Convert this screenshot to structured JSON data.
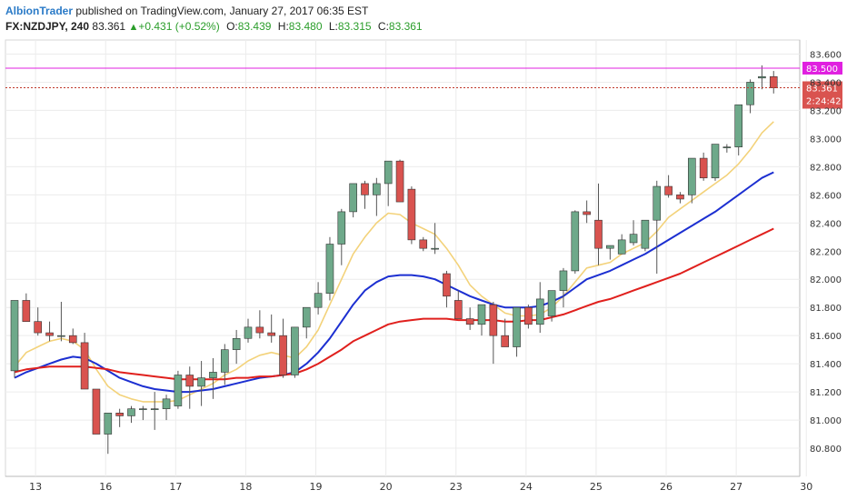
{
  "header": {
    "author": "AlbionTrader",
    "published_text": "published on TradingView.com, January 27, 2017 06:35 EST",
    "symbol": "FX:NZDJPY, 240",
    "last": "83.361",
    "change": "+0.431 (+0.52%)",
    "open_label": "O:",
    "open": "83.439",
    "high_label": "H:",
    "high": "83.480",
    "low_label": "L:",
    "low": "83.315",
    "close_label": "C:",
    "close": "83.361"
  },
  "chart_data": {
    "type": "candlestick",
    "ylim": [
      80.6,
      83.7
    ],
    "yticks": [
      "83.600",
      "83.400",
      "83.200",
      "83.000",
      "82.800",
      "82.600",
      "82.400",
      "82.200",
      "82.000",
      "81.800",
      "81.600",
      "81.400",
      "81.200",
      "81.000",
      "80.800"
    ],
    "xticks": [
      {
        "label": "13",
        "i": 1.8
      },
      {
        "label": "16",
        "i": 7.8
      },
      {
        "label": "17",
        "i": 13.8
      },
      {
        "label": "18",
        "i": 19.8
      },
      {
        "label": "19",
        "i": 25.8
      },
      {
        "label": "20",
        "i": 31.8
      },
      {
        "label": "23",
        "i": 37.8
      },
      {
        "label": "24",
        "i": 43.8
      },
      {
        "label": "25",
        "i": 49.8
      },
      {
        "label": "26",
        "i": 55.8
      },
      {
        "label": "27",
        "i": 61.8
      },
      {
        "label": "30",
        "i": 67.8
      }
    ],
    "candles": [
      [
        81.35,
        81.85,
        81.3,
        81.85
      ],
      [
        81.85,
        81.9,
        81.7,
        81.7
      ],
      [
        81.7,
        81.8,
        81.6,
        81.62
      ],
      [
        81.62,
        81.7,
        81.56,
        81.6
      ],
      [
        81.6,
        81.84,
        81.56,
        81.6
      ],
      [
        81.6,
        81.65,
        81.54,
        81.55
      ],
      [
        81.55,
        81.62,
        81.22,
        81.22
      ],
      [
        81.22,
        81.22,
        80.9,
        80.9
      ],
      [
        80.9,
        81.05,
        80.76,
        81.05
      ],
      [
        81.05,
        81.08,
        80.95,
        81.03
      ],
      [
        81.03,
        81.1,
        80.98,
        81.08
      ],
      [
        81.08,
        81.1,
        81.0,
        81.08
      ],
      [
        81.08,
        81.2,
        80.93,
        81.08
      ],
      [
        81.08,
        81.18,
        81.0,
        81.15
      ],
      [
        81.1,
        81.35,
        81.08,
        81.32
      ],
      [
        81.32,
        81.38,
        81.08,
        81.24
      ],
      [
        81.24,
        81.42,
        81.1,
        81.3
      ],
      [
        81.3,
        81.44,
        81.15,
        81.34
      ],
      [
        81.34,
        81.54,
        81.25,
        81.5
      ],
      [
        81.5,
        81.64,
        81.4,
        81.58
      ],
      [
        81.58,
        81.72,
        81.55,
        81.66
      ],
      [
        81.66,
        81.78,
        81.58,
        81.62
      ],
      [
        81.62,
        81.75,
        81.55,
        81.6
      ],
      [
        81.6,
        81.72,
        81.3,
        81.32
      ],
      [
        81.32,
        81.66,
        81.3,
        81.66
      ],
      [
        81.66,
        81.8,
        81.58,
        81.8
      ],
      [
        81.8,
        81.98,
        81.75,
        81.9
      ],
      [
        81.9,
        82.3,
        81.85,
        82.25
      ],
      [
        82.25,
        82.5,
        82.1,
        82.48
      ],
      [
        82.48,
        82.68,
        82.44,
        82.68
      ],
      [
        82.68,
        82.7,
        82.5,
        82.6
      ],
      [
        82.6,
        82.72,
        82.45,
        82.68
      ],
      [
        82.68,
        82.84,
        82.52,
        82.84
      ],
      [
        82.84,
        82.85,
        82.55,
        82.55
      ],
      [
        82.64,
        82.66,
        82.25,
        82.28
      ],
      [
        82.28,
        82.3,
        82.2,
        82.22
      ],
      [
        82.22,
        82.4,
        82.18,
        82.22
      ],
      [
        82.04,
        82.06,
        81.8,
        81.88
      ],
      [
        81.85,
        81.92,
        81.74,
        81.72
      ],
      [
        81.72,
        81.8,
        81.64,
        81.68
      ],
      [
        81.68,
        81.8,
        81.6,
        81.82
      ],
      [
        81.82,
        81.84,
        81.4,
        81.6
      ],
      [
        81.6,
        81.72,
        81.52,
        81.52
      ],
      [
        81.52,
        81.78,
        81.45,
        81.8
      ],
      [
        81.8,
        81.82,
        81.65,
        81.68
      ],
      [
        81.68,
        81.98,
        81.62,
        81.86
      ],
      [
        81.74,
        81.92,
        81.7,
        81.92
      ],
      [
        81.92,
        82.08,
        81.8,
        82.06
      ],
      [
        82.06,
        82.49,
        82.04,
        82.48
      ],
      [
        82.48,
        82.56,
        82.4,
        82.46
      ],
      [
        82.42,
        82.68,
        82.1,
        82.22
      ],
      [
        82.22,
        82.24,
        82.14,
        82.24
      ],
      [
        82.18,
        82.32,
        82.18,
        82.28
      ],
      [
        82.26,
        82.42,
        82.24,
        82.32
      ],
      [
        82.22,
        82.4,
        82.2,
        82.42
      ],
      [
        82.42,
        82.7,
        82.04,
        82.66
      ],
      [
        82.66,
        82.74,
        82.58,
        82.6
      ],
      [
        82.6,
        82.62,
        82.54,
        82.57
      ],
      [
        82.6,
        82.86,
        82.54,
        82.86
      ],
      [
        82.86,
        82.9,
        82.7,
        82.72
      ],
      [
        82.72,
        82.96,
        82.7,
        82.96
      ],
      [
        82.94,
        82.96,
        82.9,
        82.94
      ],
      [
        82.94,
        83.24,
        82.88,
        83.24
      ],
      [
        83.24,
        83.42,
        83.18,
        83.4
      ],
      [
        83.43,
        83.52,
        83.35,
        83.44
      ],
      [
        83.44,
        83.48,
        83.32,
        83.36
      ]
    ],
    "series": [
      {
        "values": [
          81.38,
          81.48,
          81.52,
          81.56,
          81.58,
          81.56,
          81.5,
          81.36,
          81.24,
          81.18,
          81.15,
          81.13,
          81.13,
          81.13,
          81.14,
          81.18,
          81.22,
          81.26,
          81.32,
          81.36,
          81.42,
          81.46,
          81.48,
          81.46,
          81.44,
          81.52,
          81.64,
          81.82,
          82.0,
          82.18,
          82.3,
          82.4,
          82.47,
          82.46,
          82.4,
          82.36,
          82.32,
          82.22,
          82.1,
          81.96,
          81.88,
          81.82,
          81.76,
          81.74,
          81.74,
          81.75,
          81.8,
          81.88,
          81.98,
          82.08,
          82.1,
          82.12,
          82.18,
          82.22,
          82.26,
          82.34,
          82.44,
          82.5,
          82.56,
          82.62,
          82.68,
          82.74,
          82.82,
          82.92,
          83.04,
          83.12
        ]
      },
      {
        "values": [
          81.3,
          81.34,
          81.37,
          81.4,
          81.43,
          81.45,
          81.44,
          81.4,
          81.35,
          81.3,
          81.27,
          81.24,
          81.22,
          81.21,
          81.2,
          81.2,
          81.21,
          81.22,
          81.24,
          81.26,
          81.28,
          81.3,
          81.31,
          81.32,
          81.34,
          81.4,
          81.48,
          81.58,
          81.7,
          81.82,
          81.92,
          81.98,
          82.02,
          82.03,
          82.03,
          82.02,
          82.0,
          81.96,
          81.92,
          81.88,
          81.85,
          81.82,
          81.8,
          81.8,
          81.8,
          81.81,
          81.84,
          81.88,
          81.94,
          82.0,
          82.03,
          82.06,
          82.1,
          82.14,
          82.18,
          82.23,
          82.28,
          82.33,
          82.38,
          82.43,
          82.48,
          82.54,
          82.6,
          82.66,
          82.72,
          82.76
        ]
      },
      {
        "values": [
          81.34,
          81.36,
          81.37,
          81.38,
          81.38,
          81.38,
          81.38,
          81.37,
          81.36,
          81.34,
          81.33,
          81.32,
          81.31,
          81.3,
          81.29,
          81.29,
          81.29,
          81.29,
          81.29,
          81.3,
          81.3,
          81.31,
          81.31,
          81.32,
          81.33,
          81.36,
          81.4,
          81.45,
          81.5,
          81.56,
          81.6,
          81.64,
          81.68,
          81.7,
          81.71,
          81.72,
          81.72,
          81.72,
          81.71,
          81.71,
          81.71,
          81.71,
          81.7,
          81.7,
          81.71,
          81.71,
          81.73,
          81.75,
          81.78,
          81.81,
          81.84,
          81.86,
          81.89,
          81.92,
          81.95,
          81.98,
          82.01,
          82.04,
          82.08,
          82.12,
          82.16,
          82.2,
          82.24,
          82.28,
          82.32,
          82.36
        ]
      }
    ],
    "hline_magenta": 83.5,
    "hline_last": 83.361,
    "labels": {
      "magenta": "83.500",
      "last": "83.361",
      "countdown": "2:24:42"
    },
    "colors": {
      "up": "#6ea98a",
      "down": "#d9534f",
      "ma_fast": "#f3d27a",
      "ma_mid": "#1c2fd1",
      "ma_slow": "#e0201d",
      "magenta": "#e020e0"
    }
  }
}
